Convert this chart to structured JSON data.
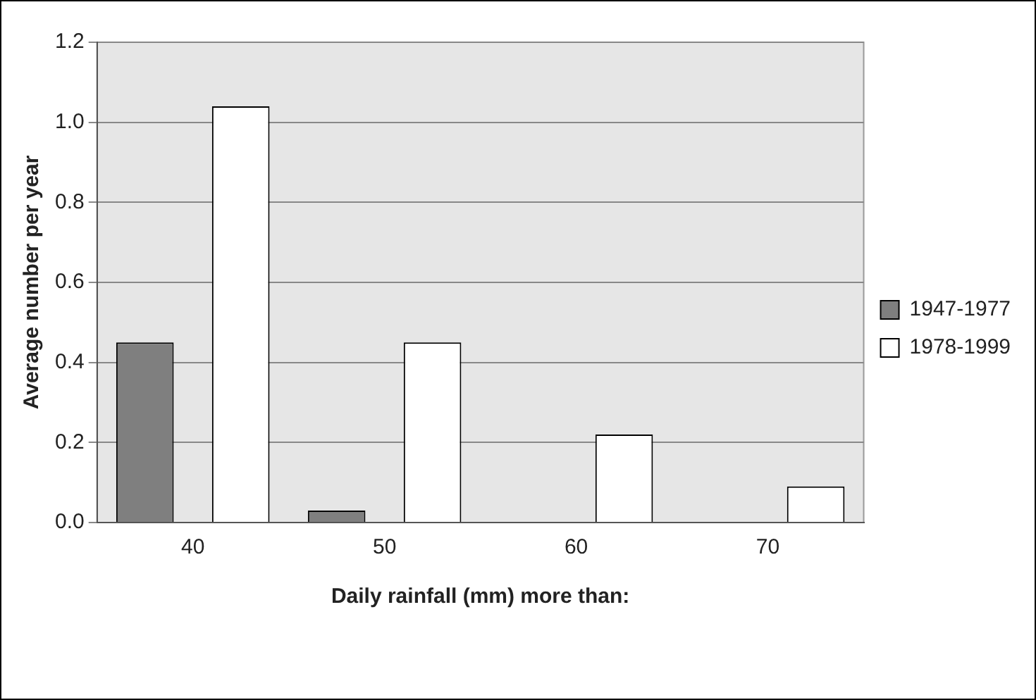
{
  "chart_data": {
    "type": "bar",
    "xlabel": "Daily rainfall (mm) more than:",
    "ylabel": "Average number per year",
    "categories": [
      "40",
      "50",
      "60",
      "70"
    ],
    "series": [
      {
        "name": "1947-1977",
        "color": "#7f7f7f",
        "values": [
          0.45,
          0.03,
          0,
          0
        ]
      },
      {
        "name": "1978-1999",
        "color": "#ffffff",
        "values": [
          1.04,
          0.45,
          0.22,
          0.09
        ]
      }
    ],
    "ylim": [
      0,
      1.2
    ],
    "yticks": [
      {
        "value": 0,
        "label": "0.0"
      },
      {
        "value": 0.2,
        "label": "0.2"
      },
      {
        "value": 0.4,
        "label": "0.4"
      },
      {
        "value": 0.6,
        "label": "0.6"
      },
      {
        "value": 0.8,
        "label": "0.8"
      },
      {
        "value": 1,
        "label": "1.0"
      },
      {
        "value": 1.2,
        "label": "1.2"
      }
    ],
    "grid": "y",
    "legend": "right"
  }
}
